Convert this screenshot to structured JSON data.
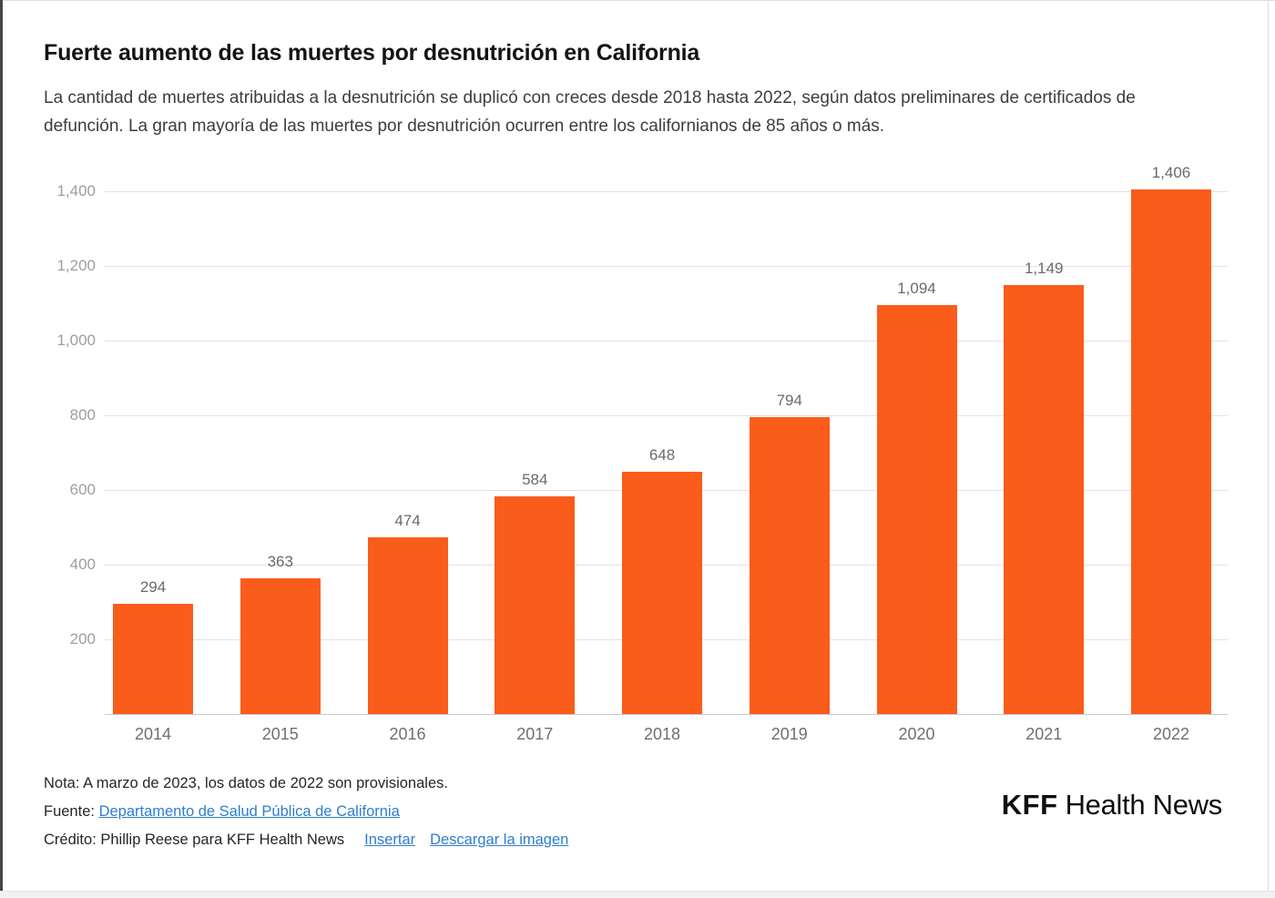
{
  "header": {
    "title": "Fuerte aumento de las muertes por desnutrición en California",
    "subtitle": "La cantidad de muertes atribuidas a la desnutrición se duplicó con creces desde 2018 hasta 2022, según datos preliminares de certificados de defunción. La gran mayoría de las muertes por desnutrición ocurren entre los californianos de 85 años o más."
  },
  "chart_data": {
    "type": "bar",
    "title": "Fuerte aumento de las muertes por desnutrición en California",
    "categories": [
      "2014",
      "2015",
      "2016",
      "2017",
      "2018",
      "2019",
      "2020",
      "2021",
      "2022"
    ],
    "values": [
      294,
      363,
      474,
      584,
      648,
      794,
      1094,
      1149,
      1406
    ],
    "value_labels": [
      "294",
      "363",
      "474",
      "584",
      "648",
      "794",
      "1,094",
      "1,149",
      "1,406"
    ],
    "xlabel": "",
    "ylabel": "",
    "ylim": [
      0,
      1450
    ],
    "yticks": [
      {
        "value": 200,
        "label": "200"
      },
      {
        "value": 400,
        "label": "400"
      },
      {
        "value": 600,
        "label": "600"
      },
      {
        "value": 800,
        "label": "800"
      },
      {
        "value": 1000,
        "label": "1,000"
      },
      {
        "value": 1200,
        "label": "1,200"
      },
      {
        "value": 1400,
        "label": "1,400"
      }
    ],
    "grid": true,
    "legend": false,
    "bar_color": "#fa5c1b"
  },
  "footer": {
    "note": "Nota: A marzo de 2023, los datos de 2022 son provisionales.",
    "source_label": "Fuente:",
    "source_link_text": "Departamento de Salud Pública de California",
    "credit_text": "Crédito: Phillip Reese para KFF Health News",
    "embed_link_text": "Insertar",
    "download_link_text": "Descargar la imagen"
  },
  "branding": {
    "logo_bold": "KFF",
    "logo_regular": "Health News"
  },
  "colors": {
    "bar": "#fa5c1b",
    "link": "#2d7dd2",
    "grid_line": "#e2e2e2",
    "axis_line": "#c9c9c9",
    "ytick_label": "#9e9e9e",
    "value_label": "#6a6a6a",
    "category_label": "#6f6f6f"
  }
}
